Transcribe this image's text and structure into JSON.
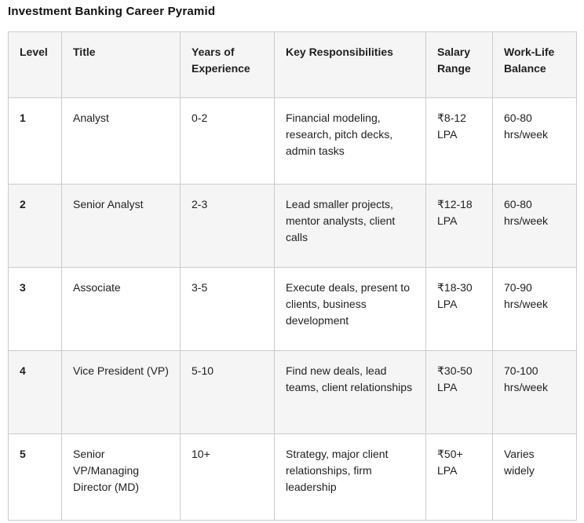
{
  "page": {
    "title": "Investment Banking Career Pyramid"
  },
  "table": {
    "headers": {
      "level": "Level",
      "title": "Title",
      "experience": "Years of Experience",
      "responsibilities": "Key Responsibilities",
      "salary": "Salary Range",
      "balance": "Work-Life Balance"
    },
    "rows": [
      {
        "level": "1",
        "title": "Analyst",
        "experience": "0-2",
        "responsibilities": "Financial modeling, research, pitch decks, admin tasks",
        "salary": "₹8-12 LPA",
        "balance": "60-80 hrs/week"
      },
      {
        "level": "2",
        "title": "Senior Analyst",
        "experience": "2-3",
        "responsibilities": "Lead smaller projects, mentor analysts, client calls",
        "salary": "₹12-18 LPA",
        "balance": "60-80 hrs/week"
      },
      {
        "level": "3",
        "title": "Associate",
        "experience": "3-5",
        "responsibilities": "Execute deals, present to clients, business development",
        "salary": "₹18-30 LPA",
        "balance": "70-90 hrs/week"
      },
      {
        "level": "4",
        "title": "Vice President (VP)",
        "experience": "5-10",
        "responsibilities": "Find new deals, lead teams, client relationships",
        "salary": "₹30-50 LPA",
        "balance": "70-100 hrs/week"
      },
      {
        "level": "5",
        "title": "Senior VP/Managing Director (MD)",
        "experience": "10+",
        "responsibilities": "Strategy, major client relationships, firm leadership",
        "salary": "₹50+ LPA",
        "balance": "Varies widely"
      }
    ]
  },
  "colors": {
    "header_bg": "#f5f5f5",
    "stripe_bg": "#f5f5f5",
    "border": "#cccccc",
    "text": "#1f1f1f",
    "title_text": "#111111"
  }
}
